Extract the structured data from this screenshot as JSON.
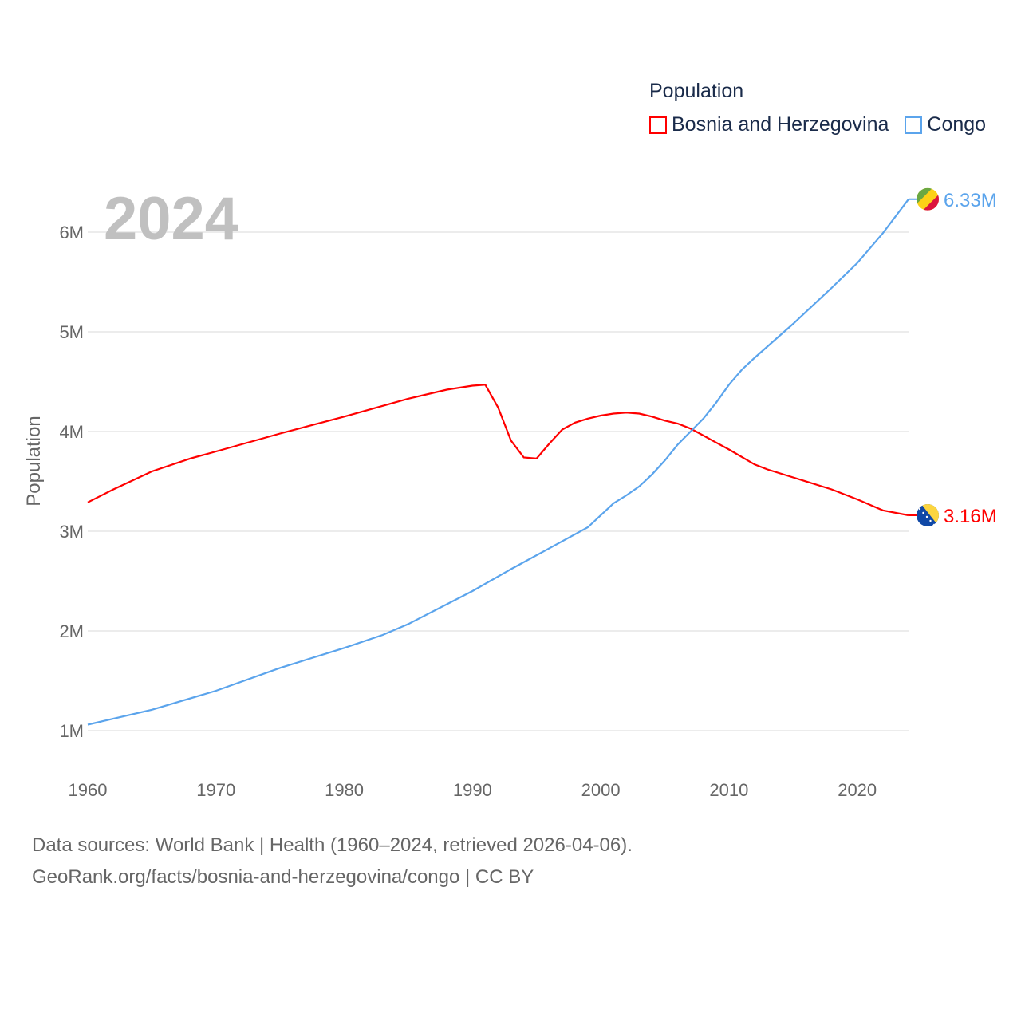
{
  "chart_data": {
    "type": "line",
    "title": "Population",
    "year_label": "2024",
    "ylabel": "Population",
    "xlabel": "",
    "xlim": [
      1960,
      2024
    ],
    "ylim": [
      1,
      6.5
    ],
    "y_unit": "millions",
    "x_ticks": [
      "1960",
      "1970",
      "1980",
      "1990",
      "2000",
      "2010",
      "2020"
    ],
    "y_ticks": [
      {
        "v": 1,
        "label": "1M"
      },
      {
        "v": 2,
        "label": "2M"
      },
      {
        "v": 3,
        "label": "3M"
      },
      {
        "v": 4,
        "label": "4M"
      },
      {
        "v": 5,
        "label": "5M"
      },
      {
        "v": 6,
        "label": "6M"
      }
    ],
    "grid": true,
    "legend_position": "top-right",
    "series": [
      {
        "name": "Bosnia and Herzegovina",
        "color": "#ff0000",
        "end_label": "3.16M",
        "flag": "bosnia-flag",
        "points": [
          [
            1960,
            3.29
          ],
          [
            1962,
            3.42
          ],
          [
            1965,
            3.6
          ],
          [
            1968,
            3.73
          ],
          [
            1970,
            3.8
          ],
          [
            1975,
            3.98
          ],
          [
            1980,
            4.15
          ],
          [
            1985,
            4.33
          ],
          [
            1988,
            4.42
          ],
          [
            1990,
            4.46
          ],
          [
            1991,
            4.47
          ],
          [
            1992,
            4.24
          ],
          [
            1993,
            3.91
          ],
          [
            1994,
            3.74
          ],
          [
            1995,
            3.73
          ],
          [
            1996,
            3.88
          ],
          [
            1997,
            4.02
          ],
          [
            1998,
            4.09
          ],
          [
            1999,
            4.13
          ],
          [
            2000,
            4.16
          ],
          [
            2001,
            4.18
          ],
          [
            2002,
            4.19
          ],
          [
            2003,
            4.18
          ],
          [
            2004,
            4.15
          ],
          [
            2005,
            4.11
          ],
          [
            2006,
            4.08
          ],
          [
            2007,
            4.03
          ],
          [
            2008,
            3.96
          ],
          [
            2009,
            3.89
          ],
          [
            2010,
            3.82
          ],
          [
            2012,
            3.67
          ],
          [
            2013,
            3.62
          ],
          [
            2015,
            3.54
          ],
          [
            2018,
            3.42
          ],
          [
            2020,
            3.32
          ],
          [
            2022,
            3.21
          ],
          [
            2024,
            3.16
          ]
        ]
      },
      {
        "name": "Congo",
        "color": "#5ba4ec",
        "end_label": "6.33M",
        "flag": "congo-flag",
        "points": [
          [
            1960,
            1.06
          ],
          [
            1965,
            1.21
          ],
          [
            1970,
            1.4
          ],
          [
            1975,
            1.63
          ],
          [
            1980,
            1.83
          ],
          [
            1983,
            1.96
          ],
          [
            1985,
            2.07
          ],
          [
            1990,
            2.4
          ],
          [
            1993,
            2.62
          ],
          [
            1996,
            2.83
          ],
          [
            1999,
            3.04
          ],
          [
            2001,
            3.28
          ],
          [
            2002,
            3.36
          ],
          [
            2003,
            3.45
          ],
          [
            2004,
            3.57
          ],
          [
            2005,
            3.71
          ],
          [
            2006,
            3.87
          ],
          [
            2008,
            4.13
          ],
          [
            2009,
            4.29
          ],
          [
            2010,
            4.47
          ],
          [
            2011,
            4.62
          ],
          [
            2012,
            4.74
          ],
          [
            2015,
            5.08
          ],
          [
            2018,
            5.44
          ],
          [
            2020,
            5.69
          ],
          [
            2022,
            5.99
          ],
          [
            2024,
            6.33
          ]
        ]
      }
    ]
  },
  "footer": {
    "line1": "Data sources: World Bank | Health (1960–2024, retrieved 2026-04-06).",
    "line2": "GeoRank.org/facts/bosnia-and-herzegovina/congo | CC BY"
  }
}
